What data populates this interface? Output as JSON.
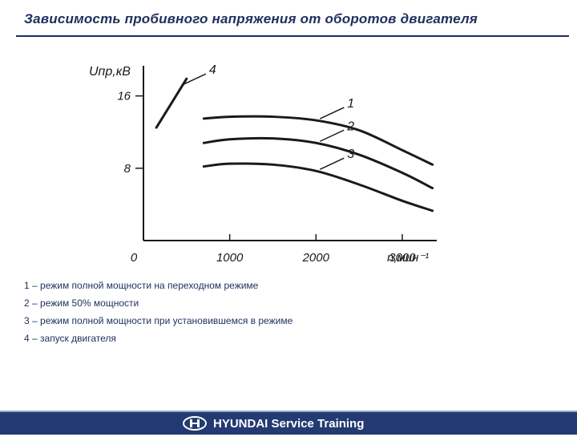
{
  "title": "Зависимость пробивного напряжения от оборотов двигателя",
  "legend": [
    "1 – режим полной мощности на переходном режиме",
    "2 – режим 50% мощности",
    "3 – режим полной мощности при установившемся в режиме",
    "4 – запуск двигателя"
  ],
  "footer": {
    "brand": "HYUNDAI Service Training"
  },
  "colors": {
    "accent": "#1f2f5c",
    "footer_bg": "#233a72"
  },
  "chart_data": {
    "type": "line",
    "ylabel": "Uпр,кВ",
    "xlabel": "n,мин⁻¹",
    "origin_label": "0",
    "xlim": [
      0,
      3400
    ],
    "ylim": [
      0,
      22
    ],
    "x_ticks": [
      {
        "value": 1000,
        "label": "1000"
      },
      {
        "value": 2000,
        "label": "2000"
      },
      {
        "value": 3000,
        "label": "3000"
      }
    ],
    "y_ticks": [
      {
        "value": 8,
        "label": "8"
      },
      {
        "value": 16,
        "label": "16"
      }
    ],
    "series": [
      {
        "name": "1",
        "points": [
          [
            700,
            13.5
          ],
          [
            1000,
            13.7
          ],
          [
            1500,
            13.7
          ],
          [
            2000,
            13.3
          ],
          [
            2500,
            12.2
          ],
          [
            3000,
            10.0
          ],
          [
            3350,
            8.4
          ]
        ]
      },
      {
        "name": "2",
        "points": [
          [
            700,
            10.8
          ],
          [
            1000,
            11.2
          ],
          [
            1500,
            11.3
          ],
          [
            2000,
            10.8
          ],
          [
            2500,
            9.5
          ],
          [
            3000,
            7.5
          ],
          [
            3350,
            5.8
          ]
        ]
      },
      {
        "name": "3",
        "points": [
          [
            700,
            8.2
          ],
          [
            1000,
            8.5
          ],
          [
            1500,
            8.4
          ],
          [
            2000,
            7.7
          ],
          [
            2500,
            6.2
          ],
          [
            3000,
            4.4
          ],
          [
            3350,
            3.3
          ]
        ]
      },
      {
        "name": "4",
        "points": [
          [
            150,
            12.5
          ],
          [
            500,
            17.9
          ]
        ]
      }
    ]
  }
}
